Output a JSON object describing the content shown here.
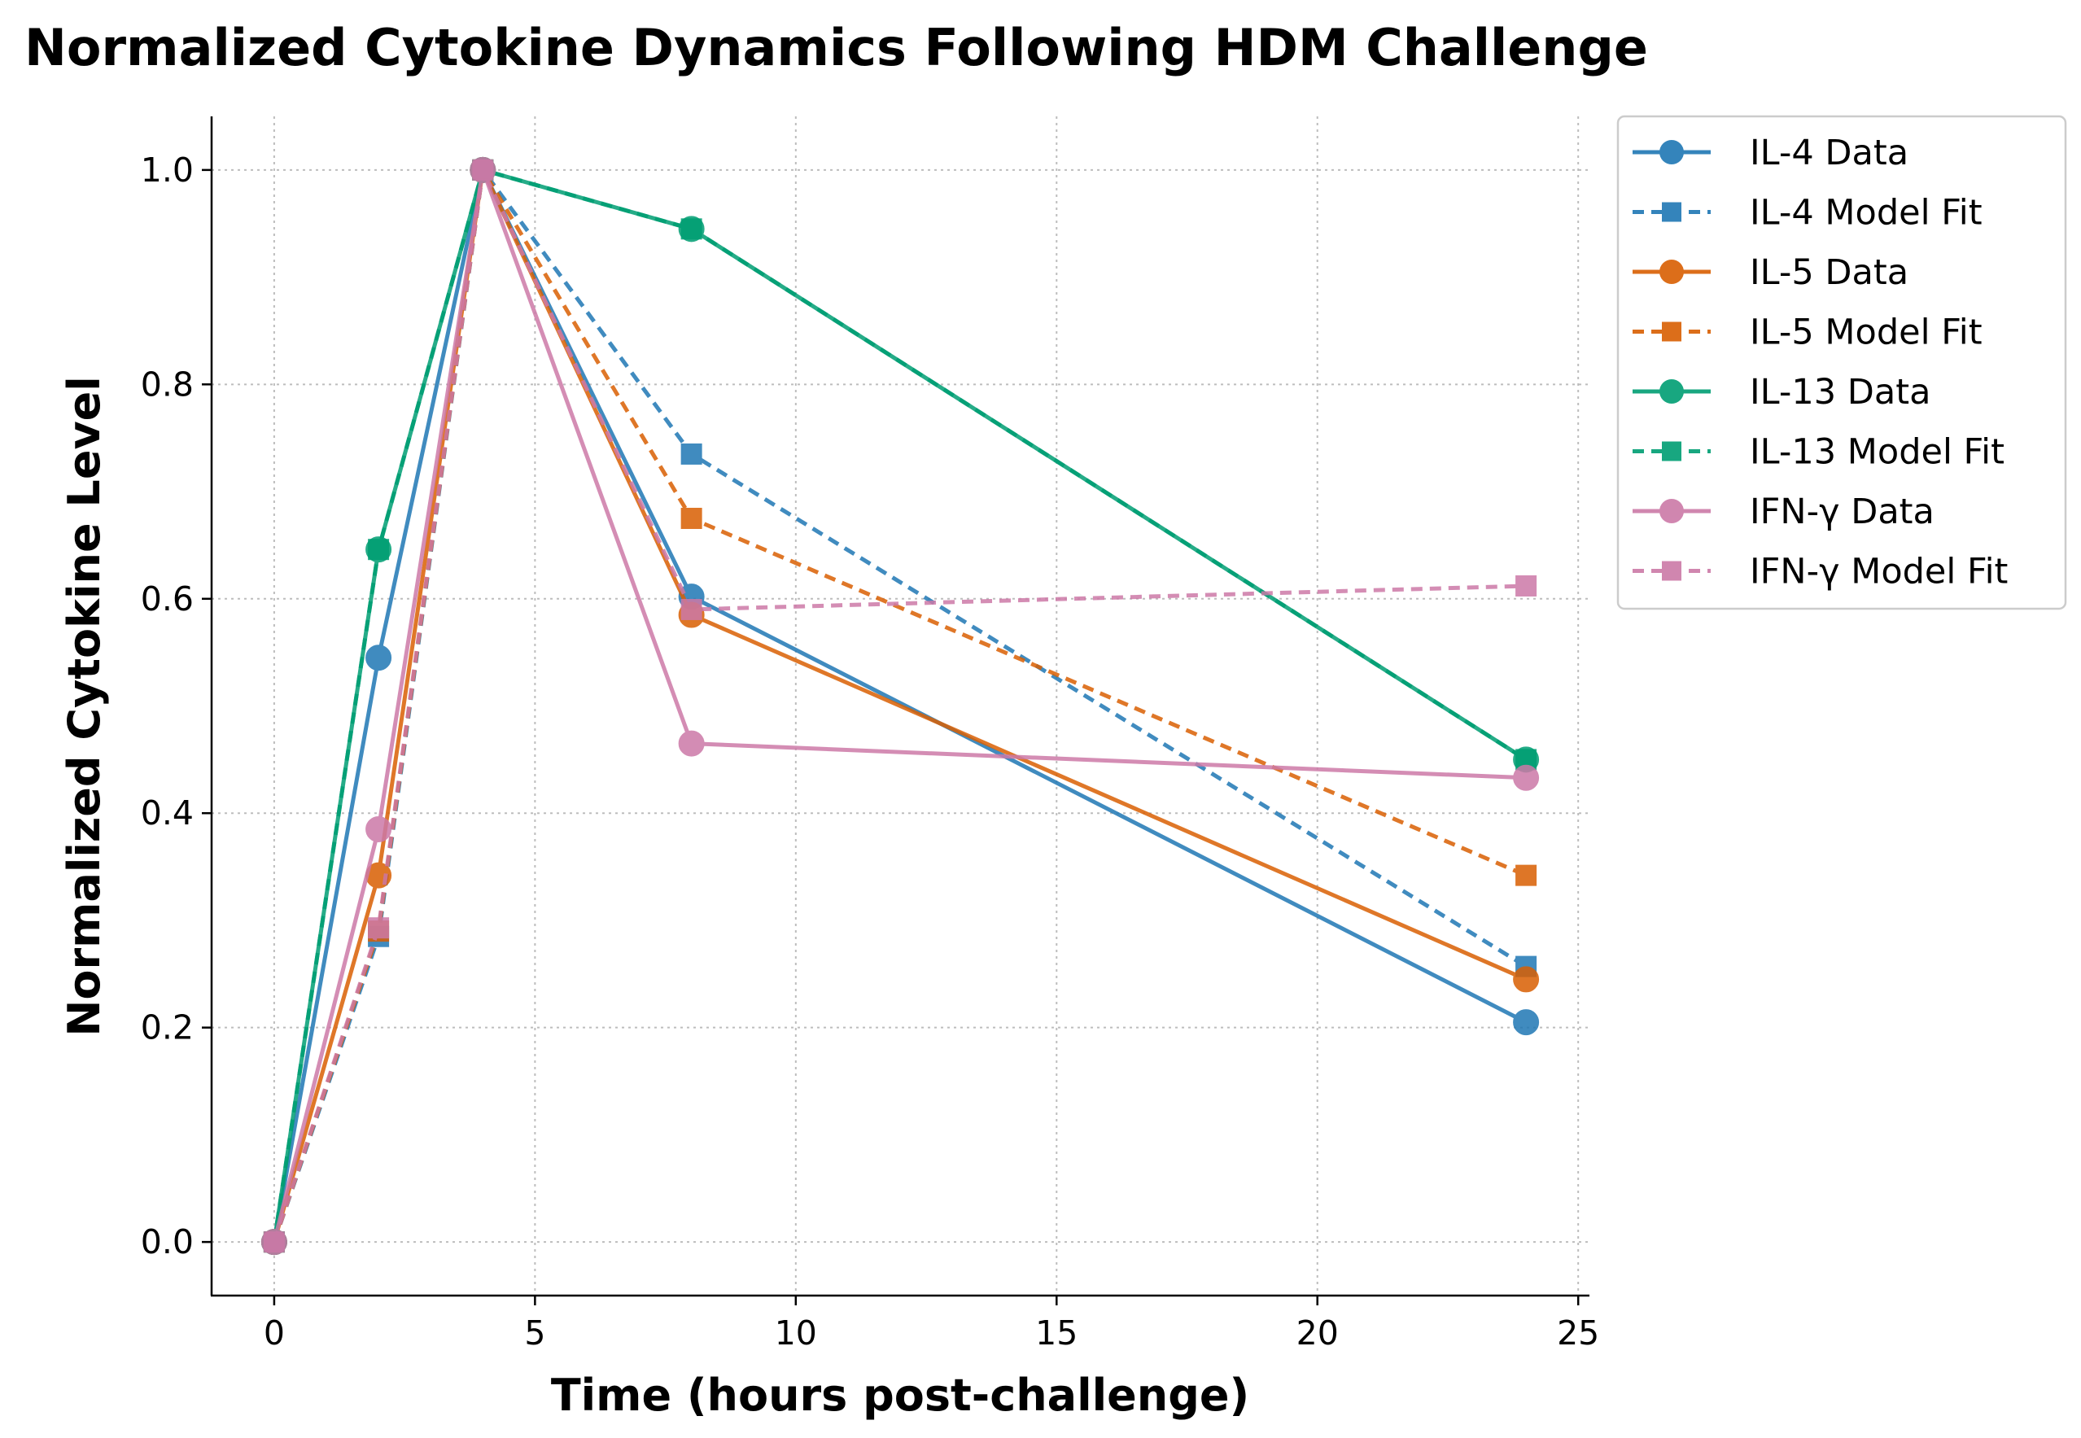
{
  "chart_data": {
    "type": "line",
    "title": "Normalized Cytokine Dynamics Following HDM Challenge",
    "xlabel": "Time (hours post-challenge)",
    "ylabel": "Normalized Cytokine Level",
    "xlim": [
      -1.2,
      25.2
    ],
    "ylim": [
      -0.05,
      1.05
    ],
    "xticks": [
      0,
      5,
      10,
      15,
      20,
      25
    ],
    "yticks": [
      0.0,
      0.2,
      0.4,
      0.6,
      0.8,
      1.0
    ],
    "xtick_labels": [
      "0",
      "5",
      "10",
      "15",
      "20",
      "25"
    ],
    "ytick_labels": [
      "0.0",
      "0.2",
      "0.4",
      "0.6",
      "0.8",
      "1.0"
    ],
    "grid": true,
    "legend_position": "outside-right-top",
    "x": [
      0,
      2,
      4,
      8,
      24
    ],
    "series": [
      {
        "name": "IL-4 Data",
        "values": [
          0.0,
          0.545,
          1.0,
          0.602,
          0.205
        ],
        "color": "#1f77b4",
        "style": "solid",
        "marker": "circle"
      },
      {
        "name": "IL-4 Model Fit",
        "values": [
          0.0,
          0.285,
          1.0,
          0.735,
          0.257
        ],
        "color": "#1f77b4",
        "style": "dashed",
        "marker": "square"
      },
      {
        "name": "IL-5 Data",
        "values": [
          0.0,
          0.342,
          1.0,
          0.585,
          0.245
        ],
        "color": "#d95f02",
        "style": "solid",
        "marker": "circle"
      },
      {
        "name": "IL-5 Model Fit",
        "values": [
          0.0,
          0.29,
          1.0,
          0.675,
          0.342
        ],
        "color": "#d95f02",
        "style": "dashed",
        "marker": "square"
      },
      {
        "name": "IL-13 Data",
        "values": [
          0.0,
          0.646,
          1.0,
          0.945,
          0.45
        ],
        "color": "#009e73",
        "style": "solid",
        "marker": "circle"
      },
      {
        "name": "IL-13 Model Fit",
        "values": [
          0.0,
          0.646,
          1.0,
          0.945,
          0.45
        ],
        "color": "#009e73",
        "style": "dashed",
        "marker": "square"
      },
      {
        "name": "IFN-γ Data",
        "values": [
          0.0,
          0.385,
          1.0,
          0.465,
          0.433
        ],
        "color": "#cc79a7",
        "style": "solid",
        "marker": "circle"
      },
      {
        "name": "IFN-γ Model Fit",
        "values": [
          0.0,
          0.293,
          1.0,
          0.59,
          0.612
        ],
        "color": "#cc79a7",
        "style": "dashed",
        "marker": "square"
      }
    ]
  }
}
